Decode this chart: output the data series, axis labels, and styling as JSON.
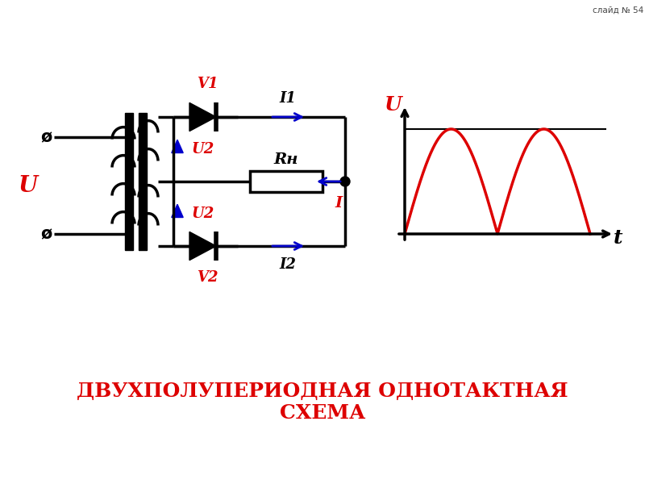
{
  "title_line1": "ДВУХПОЛУПЕРИОДНАЯ ОДНОТАКТНАЯ",
  "title_line2": "СХЕМА",
  "title_color": "#dd0000",
  "title_fontsize": 18,
  "slide_text": "слайд № 54",
  "bg_color": "#ffffff",
  "circuit_color": "#000000",
  "red_color": "#dd0000",
  "blue_color": "#0000cc",
  "label_U": "U",
  "label_V1": "V1",
  "label_V2": "V2",
  "label_U2_top": "U2",
  "label_U2_bot": "U2",
  "label_Rn": "Rн",
  "label_I": "I",
  "label_I1": "I1",
  "label_I2": "I2",
  "label_t": "t",
  "label_Uaxis": "U"
}
